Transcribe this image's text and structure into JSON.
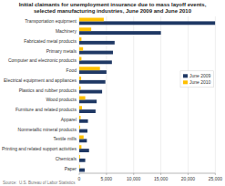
{
  "chart_data": {
    "type": "bar",
    "orientation": "horizontal",
    "title": "Initial claimants for unemployment insurance due to mass layoff events,\nselected manufacturing industries, June 2009 and June 2010",
    "source": "Source:  U.S. Bureau of Labor Statistics",
    "categories": [
      "Transportation equipment",
      "Machinery",
      "Fabricated metal products",
      "Primary metals",
      "Computer and electronic products",
      "Food",
      "Electrical equipment and appliances",
      "Plastics and rubber products",
      "Wood products",
      "Furniture and related products",
      "Apparel",
      "Nonmetallic mineral products",
      "Textile mills",
      "Printing and related support activities",
      "Chemicals",
      "Paper"
    ],
    "series": [
      {
        "name": "June 2009",
        "color": "#1f3864",
        "values": [
          25000,
          15000,
          6500,
          6200,
          6000,
          5000,
          4800,
          4200,
          3200,
          3000,
          1600,
          1500,
          1400,
          1800,
          1100,
          1000
        ]
      },
      {
        "name": "June 2010",
        "color": "#ffc000",
        "values": [
          4500,
          2200,
          400,
          700,
          400,
          3800,
          350,
          250,
          1100,
          500,
          250,
          150,
          800,
          400,
          150,
          100
        ]
      }
    ],
    "xlim": [
      0,
      25000
    ],
    "xticks": [
      0,
      {
        "value": 5000,
        "label": "5,000"
      },
      {
        "value": 10000,
        "label": "10,000"
      },
      {
        "value": 15000,
        "label": "15,000"
      },
      {
        "value": 20000,
        "label": "20,000"
      },
      {
        "value": 25000,
        "label": "25,000"
      }
    ],
    "grid": true,
    "legend": "right"
  }
}
